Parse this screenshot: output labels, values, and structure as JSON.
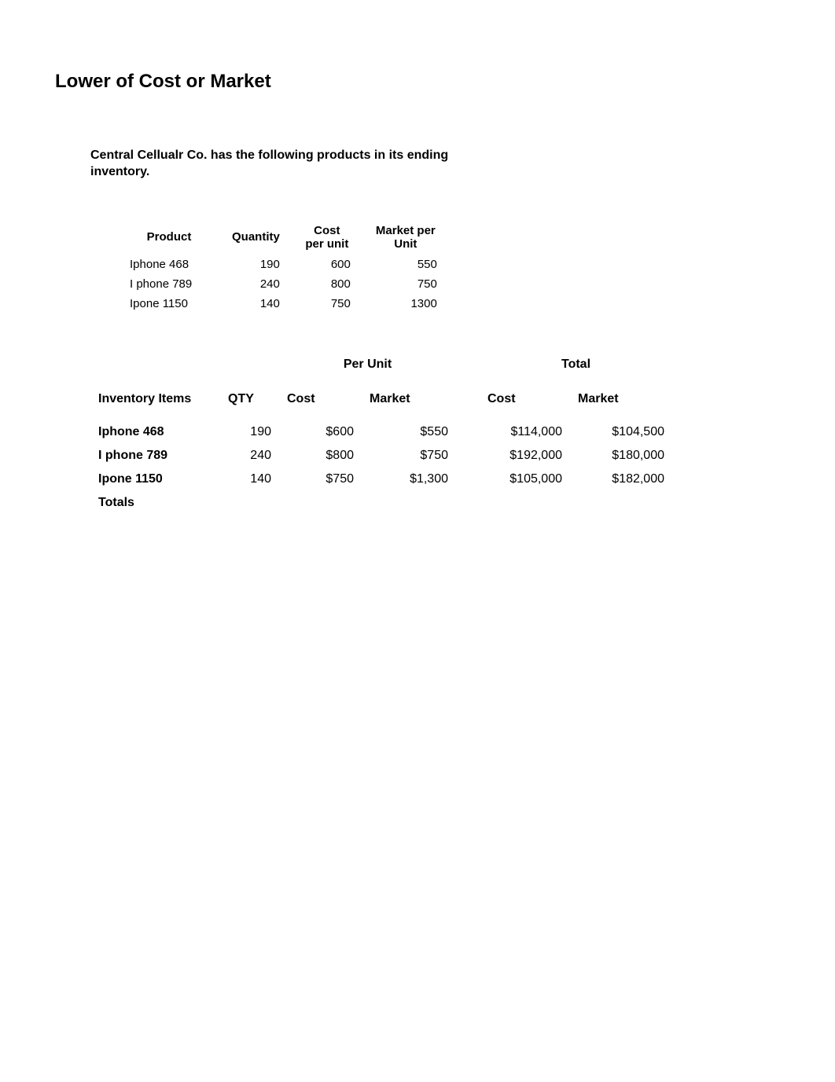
{
  "pageTitle": "Lower of Cost or Market",
  "introText": "Central Cellualr Co. has the following products in its ending inventory.",
  "table1": {
    "headers": {
      "product": "Product",
      "quantity": "Quantity",
      "costPerUnit": "Cost per unit",
      "marketPerUnit": "Market per Unit"
    },
    "rows": [
      {
        "product": "Iphone  468",
        "quantity": "190",
        "cost": "600",
        "market": "550"
      },
      {
        "product": "I phone 789",
        "quantity": "240",
        "cost": "800",
        "market": "750"
      },
      {
        "product": "Ipone 1150",
        "quantity": "140",
        "cost": "750",
        "market": "1300"
      }
    ]
  },
  "table2": {
    "groupHeaders": {
      "perUnit": "Per Unit",
      "total": "Total"
    },
    "headers": {
      "items": "Inventory Items",
      "qty": "QTY",
      "cost": "Cost",
      "market": "Market",
      "totalCost": "Cost",
      "totalMarket": "Market"
    },
    "rows": [
      {
        "item": "Iphone  468",
        "qty": "190",
        "cost": "$600",
        "market": "$550",
        "tcost": "$114,000",
        "tmarket": "$104,500"
      },
      {
        "item": "I phone 789",
        "qty": "240",
        "cost": "$800",
        "market": "$750",
        "tcost": "$192,000",
        "tmarket": "$180,000"
      },
      {
        "item": "Ipone 1150",
        "qty": "140",
        "cost": "$750",
        "market": "$1,300",
        "tcost": "$105,000",
        "tmarket": "$182,000"
      }
    ],
    "totalsLabel": "Totals"
  },
  "styling": {
    "backgroundColor": "#ffffff",
    "textColor": "#000000",
    "titleFontSize": 24,
    "bodyFontSize": 16,
    "table1FontSize": 15
  }
}
